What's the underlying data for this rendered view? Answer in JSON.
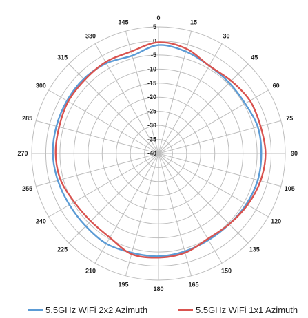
{
  "chart_data": {
    "type": "polar-line",
    "title": "",
    "angle_labels": [
      "0",
      "15",
      "30",
      "45",
      "60",
      "75",
      "90",
      "105",
      "120",
      "135",
      "150",
      "165",
      "180",
      "195",
      "210",
      "225",
      "240",
      "255",
      "270",
      "285",
      "300",
      "315",
      "330",
      "345"
    ],
    "radial_labels": [
      "5",
      "0",
      "-5",
      "-10",
      "-15",
      "-20",
      "-25",
      "-30",
      "-35",
      "-40"
    ],
    "radial_range": [
      -40,
      5
    ],
    "radial_step": 5,
    "angle_step": 15,
    "legend_position": "bottom",
    "series": [
      {
        "name": "5.5GHz WiFi 2x2 Azimuth",
        "color": "#5b9bd5",
        "angles": [
          0,
          15,
          30,
          45,
          60,
          75,
          90,
          105,
          120,
          135,
          150,
          165,
          180,
          195,
          210,
          225,
          240,
          255,
          270,
          285,
          300,
          315,
          330,
          345
        ],
        "values": [
          -1.5,
          -2.5,
          -4,
          -4.5,
          -4.5,
          -3.5,
          -3.5,
          -3.5,
          -4,
          -4.5,
          -4.5,
          -4,
          -3.5,
          -3.5,
          -3,
          -3.5,
          -3.5,
          -3,
          -2.5,
          -2.5,
          -2.5,
          -2.5,
          -3,
          -4
        ]
      },
      {
        "name": "5.5GHz WiFi 1x1 Azimuth",
        "color": "#d9534f",
        "angles": [
          0,
          15,
          30,
          45,
          60,
          75,
          90,
          105,
          120,
          135,
          150,
          165,
          180,
          195,
          210,
          225,
          240,
          255,
          270,
          285,
          300,
          315,
          330,
          345
        ],
        "values": [
          -0.5,
          -1.5,
          -4,
          -3.5,
          -2.5,
          -2.5,
          -2,
          -2.5,
          -3.5,
          -4.5,
          -5,
          -3.5,
          -3,
          -3,
          -5.5,
          -6,
          -5.5,
          -4,
          -3.5,
          -3.5,
          -3,
          -3,
          -2.5,
          -2.5
        ]
      }
    ]
  }
}
